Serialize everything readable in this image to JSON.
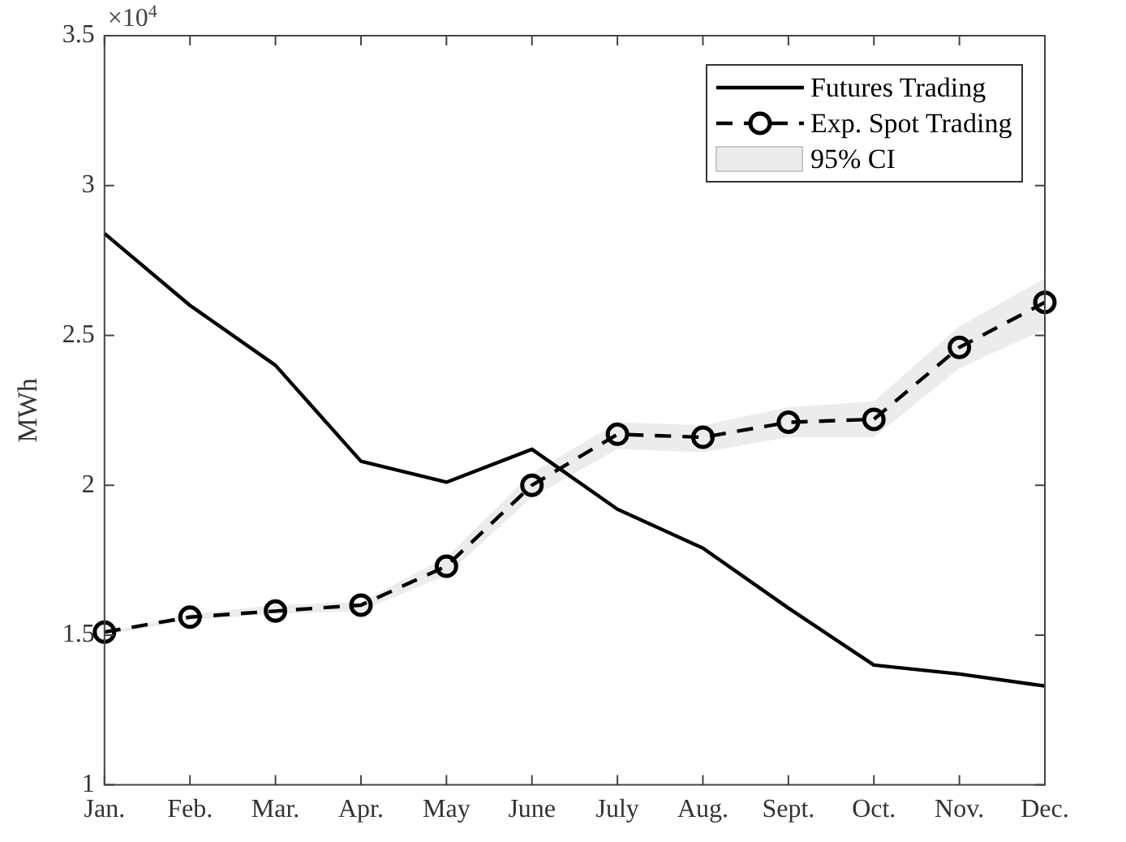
{
  "chart_data": {
    "type": "line",
    "ylabel": "MWh",
    "annotations": [
      "×10$^{4}$",
      "95% CI"
    ],
    "categories": [
      "Jan.",
      "Feb.",
      "Mar.",
      "Apr.",
      "May",
      "June",
      "July",
      "Aug.",
      "Sept.",
      "Oct.",
      "Nov.",
      "Dec."
    ],
    "series": [
      {
        "name": "Futures Trading",
        "color": "#000000",
        "line_style": "solid",
        "marker": "none",
        "values": [
          2.84,
          2.6,
          2.4,
          2.08,
          2.01,
          2.12,
          1.92,
          1.79,
          1.59,
          1.4,
          1.37,
          1.33
        ]
      },
      {
        "name": "Exp. Spot Trading",
        "color": "#000000",
        "line_style": "dashed",
        "marker": "circle",
        "values": [
          1.51,
          1.56,
          1.58,
          1.6,
          1.73,
          2.0,
          2.17,
          2.16,
          2.21,
          2.22,
          2.46,
          2.61
        ],
        "lower": [
          1.5,
          1.55,
          1.57,
          1.58,
          1.7,
          1.96,
          2.12,
          2.11,
          2.16,
          2.16,
          2.39,
          2.52
        ],
        "upper": [
          1.51,
          1.57,
          1.6,
          1.61,
          1.76,
          2.04,
          2.21,
          2.2,
          2.26,
          2.28,
          2.53,
          2.69
        ]
      }
    ],
    "ylim": [
      1,
      3.5
    ],
    "yticks": [
      1,
      1.5,
      2,
      2.5,
      3,
      3.5
    ],
    "grid": false,
    "legend": "top right"
  }
}
